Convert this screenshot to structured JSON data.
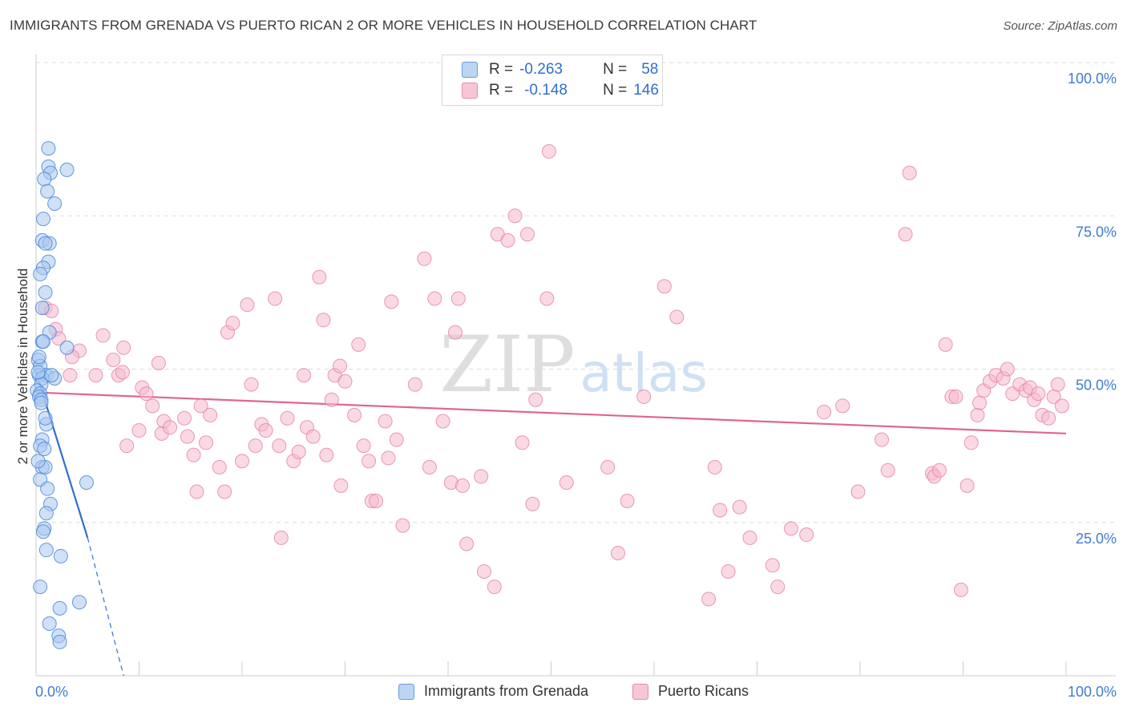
{
  "title": "IMMIGRANTS FROM GRENADA VS PUERTO RICAN 2 OR MORE VEHICLES IN HOUSEHOLD CORRELATION CHART",
  "source": "Source: ZipAtlas.com",
  "watermark": {
    "zip": "ZIP",
    "atlas": "atlas"
  },
  "legend": {
    "r_label": "R =",
    "n_label": "N =",
    "rows": [
      {
        "r": "-0.263",
        "n": "58"
      },
      {
        "r": "-0.148",
        "n": "146"
      }
    ]
  },
  "colors": {
    "blue_fill": "#a9c8f0",
    "blue_stroke": "#4a86d8",
    "blue_line": "#2f6fd1",
    "pink_fill": "#f5b9cd",
    "pink_stroke": "#e57fa4",
    "pink_line": "#e0668f",
    "axis_text": "#3f7bd6",
    "grid": "#dcdcdc"
  },
  "chart_data": {
    "type": "scatter",
    "xlabel": "",
    "ylabel": "2 or more Vehicles in Household",
    "xlim": [
      0,
      100
    ],
    "ylim": [
      0,
      100
    ],
    "x_tick_labels": [
      "0.0%",
      "100.0%"
    ],
    "y_tick_labels": [
      "25.0%",
      "50.0%",
      "75.0%",
      "100.0%"
    ],
    "y_ticks": [
      25,
      50,
      75,
      100
    ],
    "grid": true,
    "legend_position": "top-center",
    "series": [
      {
        "name": "Immigrants from Grenada",
        "color": "#4a86d8",
        "points": [
          [
            1.2,
            86
          ],
          [
            1.2,
            83
          ],
          [
            3,
            82.5
          ],
          [
            1.4,
            82
          ],
          [
            0.8,
            81
          ],
          [
            1.1,
            79
          ],
          [
            1.8,
            77
          ],
          [
            0.7,
            74.5
          ],
          [
            0.6,
            71
          ],
          [
            1.3,
            70.5
          ],
          [
            0.9,
            70.5
          ],
          [
            1.2,
            67.5
          ],
          [
            0.7,
            66.5
          ],
          [
            0.4,
            65.5
          ],
          [
            0.9,
            62.5
          ],
          [
            0.6,
            60
          ],
          [
            1.3,
            56
          ],
          [
            0.6,
            54.5
          ],
          [
            0.7,
            54.5
          ],
          [
            3,
            53.5
          ],
          [
            0.2,
            51.5
          ],
          [
            0.4,
            50.5
          ],
          [
            0.3,
            49
          ],
          [
            1,
            49
          ],
          [
            1.8,
            48.5
          ],
          [
            0.6,
            48.5
          ],
          [
            0.5,
            47.5
          ],
          [
            0.1,
            46.5
          ],
          [
            0.4,
            46
          ],
          [
            0.3,
            45.5
          ],
          [
            0.5,
            45
          ],
          [
            1,
            41
          ],
          [
            0.6,
            38.5
          ],
          [
            0.4,
            37.5
          ],
          [
            0.8,
            37
          ],
          [
            0.6,
            34
          ],
          [
            0.9,
            34
          ],
          [
            0.4,
            32
          ],
          [
            4.9,
            31.5
          ],
          [
            1.1,
            30.5
          ],
          [
            1.4,
            28
          ],
          [
            1,
            26.5
          ],
          [
            0.8,
            24
          ],
          [
            0.7,
            23.5
          ],
          [
            1,
            20.5
          ],
          [
            2.4,
            19.5
          ],
          [
            0.4,
            14.5
          ],
          [
            4.2,
            12
          ],
          [
            2.3,
            11
          ],
          [
            1.3,
            8.5
          ],
          [
            2.2,
            6.5
          ],
          [
            2.3,
            5.5
          ],
          [
            0.2,
            49.5
          ],
          [
            0.5,
            44.5
          ],
          [
            0.3,
            52
          ],
          [
            1.5,
            49
          ],
          [
            0.9,
            42
          ],
          [
            0.2,
            35
          ]
        ]
      },
      {
        "name": "Puerto Ricans",
        "color": "#e57fa4",
        "points": [
          [
            0.9,
            60
          ],
          [
            1.5,
            59.5
          ],
          [
            1.9,
            56.5
          ],
          [
            2.2,
            55
          ],
          [
            6.5,
            55.5
          ],
          [
            7.5,
            51.5
          ],
          [
            8.5,
            53.5
          ],
          [
            11.9,
            51
          ],
          [
            4.2,
            53
          ],
          [
            3.5,
            52
          ],
          [
            3.3,
            49
          ],
          [
            5.8,
            49
          ],
          [
            8,
            49
          ],
          [
            8.4,
            49.5
          ],
          [
            10.3,
            47
          ],
          [
            10.7,
            46
          ],
          [
            11.3,
            44
          ],
          [
            10,
            40
          ],
          [
            8.8,
            37.5
          ],
          [
            12.4,
            41.5
          ],
          [
            12.2,
            39.5
          ],
          [
            13,
            40.5
          ],
          [
            14.4,
            42
          ],
          [
            14.7,
            39
          ],
          [
            15.3,
            36
          ],
          [
            15.6,
            30
          ],
          [
            16,
            44
          ],
          [
            16.5,
            38
          ],
          [
            16.9,
            42.5
          ],
          [
            17.8,
            34
          ],
          [
            18.3,
            30
          ],
          [
            18.6,
            56
          ],
          [
            19.1,
            57.5
          ],
          [
            20,
            35
          ],
          [
            20.5,
            60.5
          ],
          [
            20.9,
            47.5
          ],
          [
            21.3,
            37.5
          ],
          [
            21.9,
            41
          ],
          [
            22.3,
            40
          ],
          [
            23.2,
            61.5
          ],
          [
            23.6,
            37.5
          ],
          [
            23.8,
            22.5
          ],
          [
            24.4,
            42
          ],
          [
            25,
            35
          ],
          [
            25.5,
            36.5
          ],
          [
            26,
            49
          ],
          [
            26.3,
            40.5
          ],
          [
            26.9,
            39
          ],
          [
            27.5,
            65
          ],
          [
            27.9,
            58
          ],
          [
            28.2,
            36
          ],
          [
            28.7,
            45
          ],
          [
            29,
            49
          ],
          [
            29.5,
            50.5
          ],
          [
            29.6,
            31
          ],
          [
            30,
            48
          ],
          [
            30.9,
            42.5
          ],
          [
            31.3,
            54
          ],
          [
            31.8,
            37.5
          ],
          [
            32.3,
            35
          ],
          [
            32.6,
            28.5
          ],
          [
            33,
            28.5
          ],
          [
            33.9,
            41.5
          ],
          [
            34.2,
            35.5
          ],
          [
            34.5,
            61
          ],
          [
            35,
            38.5
          ],
          [
            35.6,
            24.5
          ],
          [
            36.8,
            47.5
          ],
          [
            37.7,
            68
          ],
          [
            38.2,
            34
          ],
          [
            38.7,
            61.5
          ],
          [
            39.5,
            41.5
          ],
          [
            40.3,
            31.5
          ],
          [
            40.7,
            56
          ],
          [
            41,
            61.5
          ],
          [
            41.4,
            31
          ],
          [
            41.8,
            21.5
          ],
          [
            43.2,
            32.5
          ],
          [
            43.5,
            17
          ],
          [
            44.5,
            14.5
          ],
          [
            44.8,
            72
          ],
          [
            45.8,
            71
          ],
          [
            46.5,
            75
          ],
          [
            47.2,
            38
          ],
          [
            47.7,
            72
          ],
          [
            48.2,
            28
          ],
          [
            48.5,
            45
          ],
          [
            49.6,
            61.5
          ],
          [
            49.8,
            85.5
          ],
          [
            51.5,
            31.5
          ],
          [
            55.5,
            34
          ],
          [
            56.5,
            20
          ],
          [
            57.4,
            28.5
          ],
          [
            59,
            45.5
          ],
          [
            61,
            63.5
          ],
          [
            62.2,
            58.5
          ],
          [
            65.3,
            12.5
          ],
          [
            65.9,
            34
          ],
          [
            66.4,
            27
          ],
          [
            67.2,
            17
          ],
          [
            68.3,
            27.5
          ],
          [
            69.3,
            22.5
          ],
          [
            71.5,
            18
          ],
          [
            72,
            14.5
          ],
          [
            73.3,
            24
          ],
          [
            74.8,
            23
          ],
          [
            76.5,
            43
          ],
          [
            78.3,
            44
          ],
          [
            79.8,
            30
          ],
          [
            82.1,
            38.5
          ],
          [
            82.7,
            33.5
          ],
          [
            84.4,
            72
          ],
          [
            84.8,
            82
          ],
          [
            87,
            33
          ],
          [
            87.2,
            32.5
          ],
          [
            87.7,
            33.5
          ],
          [
            88.3,
            54
          ],
          [
            88.9,
            45.5
          ],
          [
            89.3,
            45.5
          ],
          [
            89.8,
            14
          ],
          [
            90.4,
            31
          ],
          [
            90.8,
            38
          ],
          [
            91.4,
            42.5
          ],
          [
            91.6,
            44.5
          ],
          [
            92,
            46.5
          ],
          [
            92.6,
            48
          ],
          [
            93.2,
            49
          ],
          [
            93.9,
            48.5
          ],
          [
            94.3,
            50
          ],
          [
            94.8,
            46
          ],
          [
            95.5,
            47.5
          ],
          [
            96.1,
            46.5
          ],
          [
            96.5,
            47
          ],
          [
            96.9,
            45
          ],
          [
            97.3,
            46
          ],
          [
            97.7,
            42.5
          ],
          [
            98.3,
            42
          ],
          [
            98.8,
            45.5
          ],
          [
            99.2,
            47.5
          ],
          [
            99.6,
            44
          ]
        ]
      }
    ],
    "trendlines": [
      {
        "series": "Immigrants from Grenada",
        "from": [
          0,
          49.5
        ],
        "to": [
          5,
          22.5
        ],
        "dashed_to": [
          8.5,
          0
        ]
      },
      {
        "series": "Puerto Ricans",
        "from": [
          0,
          46.2
        ],
        "to": [
          100,
          39.5
        ]
      }
    ]
  }
}
